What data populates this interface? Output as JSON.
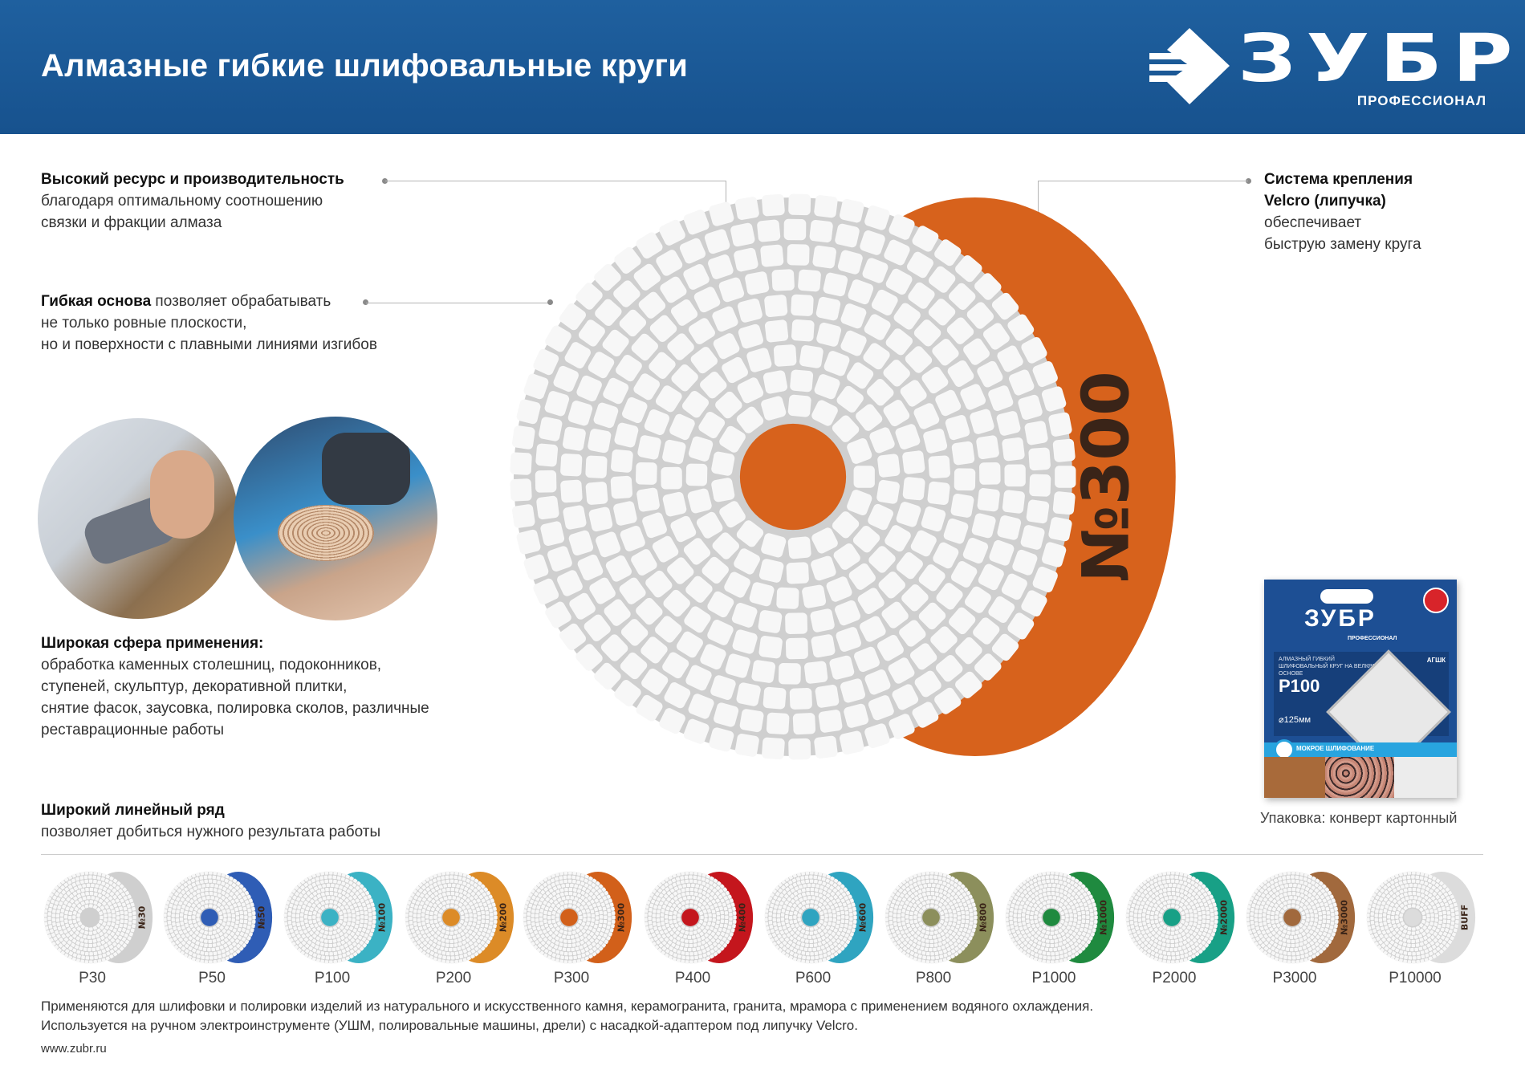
{
  "header": {
    "title": "Алмазные гибкие шлифовальные круги",
    "logo_word": "ЗУБР",
    "logo_sub": "ПРОФЕССИОНАЛ",
    "bg_color": "#1d5b99"
  },
  "features": [
    {
      "bold": "Высокий ресурс и производительность",
      "text": [
        "благодаря оптимальному соотношению",
        "связки и фракции алмаза"
      ]
    },
    {
      "bold": "Гибкая основа",
      "inline": " позволяет обрабатывать",
      "text": [
        "не только ровные плоскости,",
        "но и поверхности с плавными линиями изгибов"
      ]
    },
    {
      "bold": "Система крепления",
      "bold2": "Velcro (липучка)",
      "text": [
        "обеспечивает",
        "быструю замену круга"
      ]
    },
    {
      "bold": "Широкая сфера применения:",
      "text": [
        "обработка каменных столешниц, подоконников,",
        "ступеней, скульптур, декоративной плитки,",
        "снятие фасок, заусовка, полировка сколов, различные",
        "реставрационные работы"
      ]
    },
    {
      "bold": "Широкий линейный ряд",
      "text": [
        "позволяет добиться нужного результата работы"
      ]
    }
  ],
  "main_disc": {
    "label": "№300",
    "color": "#d7621c"
  },
  "package": {
    "brand": "ЗУБР",
    "brand_sub": "ПРОФЕССИОНАЛ",
    "desc": "АЛМАЗНЫЙ ГИБКИЙ ШЛИФОВАЛЬНЫЙ КРУГ НА ВЕЛКРО ОСНОВЕ",
    "code": "АГШК",
    "grit": "P100",
    "diameter": "⌀125мм",
    "wet": "МОКРОЕ ШЛИФОВАНИЕ",
    "caption": "Упаковка: конверт картонный"
  },
  "grits": [
    {
      "label": "P30",
      "edge": "№30",
      "color": "#cfcfcf"
    },
    {
      "label": "P50",
      "edge": "№50",
      "color": "#2f5db5"
    },
    {
      "label": "P100",
      "edge": "№100",
      "color": "#3bb2c4"
    },
    {
      "label": "P200",
      "edge": "№200",
      "color": "#dc8b27"
    },
    {
      "label": "P300",
      "edge": "№300",
      "color": "#d2601a"
    },
    {
      "label": "P400",
      "edge": "№400",
      "color": "#c4161d"
    },
    {
      "label": "P600",
      "edge": "№600",
      "color": "#2fa4c0"
    },
    {
      "label": "P800",
      "edge": "№800",
      "color": "#8c8f5c"
    },
    {
      "label": "P1000",
      "edge": "№1000",
      "color": "#1f8a3f"
    },
    {
      "label": "P2000",
      "edge": "№2000",
      "color": "#18a086"
    },
    {
      "label": "P3000",
      "edge": "№3000",
      "color": "#a1693d"
    },
    {
      "label": "P10000",
      "edge": "BUFF",
      "color": "#dcdcdc"
    }
  ],
  "footer": {
    "line1": "Применяются для шлифовки и полировки изделий из натурального и искусственного камня, керамогранита, гранита, мрамора с применением водяного охлаждения.",
    "line2": "Используется на ручном электроинструменте (УШМ, полировальные машины, дрели) с насадкой-адаптером под липучку Velcro.",
    "url": "www.zubr.ru"
  }
}
